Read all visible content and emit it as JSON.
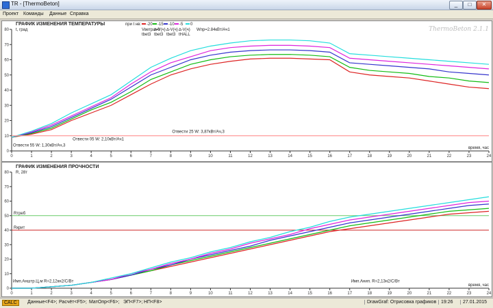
{
  "window": {
    "title": "TR - [ThermoBeton]",
    "minimize": "_",
    "maximize": "□",
    "close": "✕"
  },
  "menu": [
    "Проект",
    "Команды",
    "Данные",
    "Справка"
  ],
  "status": {
    "badge": "CALC",
    "items": [
      "Данные<F4>;",
      "Расчёт<F5>;",
      "МатОпр<F6>;",
      "ЭП<F7>;",
      "НП<F8>"
    ],
    "right": [
      "DrawGraf: Отрисовка графиков",
      "19:26",
      "27.01.2015"
    ]
  },
  "chart_data": [
    {
      "type": "line",
      "title": "ГРАФИК ИЗМЕНЕНИЯ ТЕМПЕРАТУРЫ",
      "ylabel": "t, град",
      "xlabel": "время, час",
      "watermark": "ThermoBeton 2.1.1",
      "xlim": [
        0,
        24
      ],
      "ylim": [
        0,
        80
      ],
      "yticks": [
        0,
        10,
        20,
        30,
        40,
        50,
        60,
        70,
        80
      ],
      "x": [
        0,
        1,
        2,
        3,
        4,
        5,
        6,
        7,
        8,
        9,
        10,
        11,
        12,
        13,
        14,
        15,
        16,
        17,
        18,
        19,
        20,
        21,
        22,
        23,
        24
      ],
      "legend": {
        "header": "при t нв:",
        "entries": [
          {
            "label": "-20",
            "color": "#dd2222"
          },
          {
            "label": "-15",
            "color": "#11bb11"
          },
          {
            "label": "-10",
            "color": "#3333cc"
          },
          {
            "label": "-5",
            "color": "#dd22dd"
          },
          {
            "label": "0",
            "color": "#22dddd"
          }
        ],
        "extra": [
          "Vветра=0",
          "∆-V(ч)",
          "∆-V(ч)",
          "∆-V(ч)",
          "Wпр=2.84кВт/Aч1",
          "tbet3",
          "tbet3",
          "tbet3",
          "tHALL"
        ]
      },
      "series": [
        {
          "color": "#dd2222",
          "values": [
            9,
            11,
            14,
            20,
            25,
            30,
            37,
            44,
            50,
            54,
            57,
            59,
            60.5,
            61,
            61,
            60.5,
            60,
            52,
            50,
            49,
            48,
            46,
            44,
            42,
            41
          ]
        },
        {
          "color": "#11bb11",
          "values": [
            9,
            11.5,
            15,
            21,
            27,
            32,
            39,
            47,
            52,
            57,
            60,
            62,
            63,
            63.5,
            63.5,
            63,
            62,
            55,
            53,
            52,
            51,
            49,
            48,
            46,
            45
          ]
        },
        {
          "color": "#3333cc",
          "values": [
            9,
            12,
            16,
            22,
            28,
            34,
            42,
            50,
            55,
            60,
            63,
            65,
            66,
            66.5,
            66.5,
            66,
            65,
            58,
            57,
            56,
            55,
            54,
            52,
            51,
            50
          ]
        },
        {
          "color": "#dd22dd",
          "values": [
            9,
            12.5,
            17,
            23,
            29,
            35,
            44,
            52,
            58,
            62,
            66,
            68,
            69,
            69.5,
            69.5,
            69,
            68,
            61,
            60,
            59,
            58,
            57,
            56,
            55,
            54
          ]
        },
        {
          "color": "#22dddd",
          "values": [
            9,
            13,
            18,
            25,
            31,
            37,
            46,
            55,
            61,
            66,
            69,
            71,
            72.5,
            73,
            73,
            72.5,
            71,
            64,
            63,
            62,
            61,
            60,
            59,
            58,
            57
          ]
        },
        {
          "color": "#ff9999",
          "values": [
            10,
            10,
            10,
            10,
            10,
            10,
            10,
            10,
            10,
            10,
            10,
            10,
            10,
            10,
            10,
            10,
            10,
            10,
            10,
            10,
            10,
            10,
            10,
            10,
            10
          ]
        }
      ],
      "annotations": [
        {
          "text": "Отвести 25 W: 3,87кВт/Aч,3",
          "x": 8,
          "y": 12
        },
        {
          "text": "Отвести 05 W: 2,10кВт/Aч1",
          "x": 3,
          "y": 7
        },
        {
          "text": "Отвести 55 W: 1,30кВт/Aч,3",
          "x": 0,
          "y": 3
        }
      ]
    },
    {
      "type": "line",
      "title": "ГРАФИК ИЗМЕНЕНИЯ ПРОЧНОСТИ",
      "ylabel": "R, 28т",
      "xlabel": "время, час",
      "xlim": [
        0,
        24
      ],
      "ylim": [
        0,
        80
      ],
      "yticks": [
        0,
        10,
        20,
        30,
        40,
        50,
        60,
        70,
        80
      ],
      "x": [
        0,
        1,
        2,
        3,
        4,
        5,
        6,
        7,
        8,
        9,
        10,
        11,
        12,
        13,
        14,
        15,
        16,
        17,
        18,
        19,
        20,
        21,
        22,
        23,
        24
      ],
      "reference_lines": [
        {
          "label": "Rтреб",
          "value": 50,
          "color": "#66cc66"
        },
        {
          "label": "Rкрит",
          "value": 40,
          "color": "#cc2222"
        }
      ],
      "series": [
        {
          "color": "#dd2222",
          "values": [
            0,
            0,
            1,
            2,
            4,
            6,
            9,
            12,
            15,
            18,
            21,
            24,
            27,
            30,
            33,
            36,
            39,
            41,
            43,
            45,
            47,
            49,
            51,
            52,
            53
          ]
        },
        {
          "color": "#11bb11",
          "values": [
            0,
            0,
            1,
            2,
            4,
            6,
            9,
            12,
            16,
            19,
            22,
            25,
            28,
            31,
            34,
            37,
            40,
            43,
            45,
            47,
            49,
            51,
            53,
            54,
            55
          ]
        },
        {
          "color": "#3333cc",
          "values": [
            0,
            0,
            1,
            2,
            4,
            6,
            9,
            13,
            16,
            20,
            23,
            26,
            29,
            33,
            36,
            39,
            42,
            45,
            47,
            49,
            51,
            53,
            55,
            57,
            58
          ]
        },
        {
          "color": "#dd22dd",
          "values": [
            0,
            0,
            1,
            2,
            4,
            6,
            10,
            13,
            17,
            20,
            24,
            27,
            31,
            34,
            37,
            41,
            44,
            47,
            49,
            51,
            53,
            55,
            57,
            59,
            60
          ]
        },
        {
          "color": "#22dddd",
          "values": [
            0,
            0,
            1,
            2,
            4,
            7,
            10,
            14,
            18,
            21,
            25,
            28,
            32,
            35,
            39,
            42,
            46,
            49,
            51,
            53,
            55,
            57,
            59,
            61,
            63
          ]
        }
      ],
      "annotations": [
        {
          "text": "Имп.Анштр.Ц.м R=2,12кн2/С/Bт",
          "x": 0,
          "y": 4
        },
        {
          "text": "Имп.Анип. R=2,13н2/С/Bт",
          "x": 17,
          "y": 4
        }
      ]
    }
  ]
}
